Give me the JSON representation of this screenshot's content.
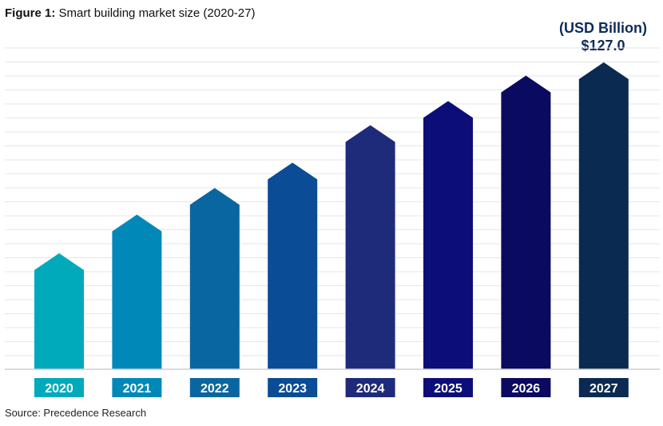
{
  "title": {
    "prefix": "Figure 1:",
    "text": "Smart building market size (2020-27)"
  },
  "unit_label": "(USD Billion)",
  "last_value_label": "$127.0",
  "source": "Source: Precedence Research",
  "chart_data": {
    "type": "bar",
    "categories": [
      "2020",
      "2021",
      "2022",
      "2023",
      "2024",
      "2025",
      "2026",
      "2027"
    ],
    "values": [
      48.0,
      64.0,
      75.0,
      85.5,
      101.0,
      111.0,
      121.5,
      127.0
    ],
    "colors": [
      "#00aabb",
      "#0089b8",
      "#0a66a0",
      "#0a4c96",
      "#1e2a7a",
      "#0d0d7a",
      "#0a0a60",
      "#0a2a52"
    ],
    "ylim": [
      0,
      135
    ],
    "grid": true,
    "label_text": "$127.0"
  }
}
